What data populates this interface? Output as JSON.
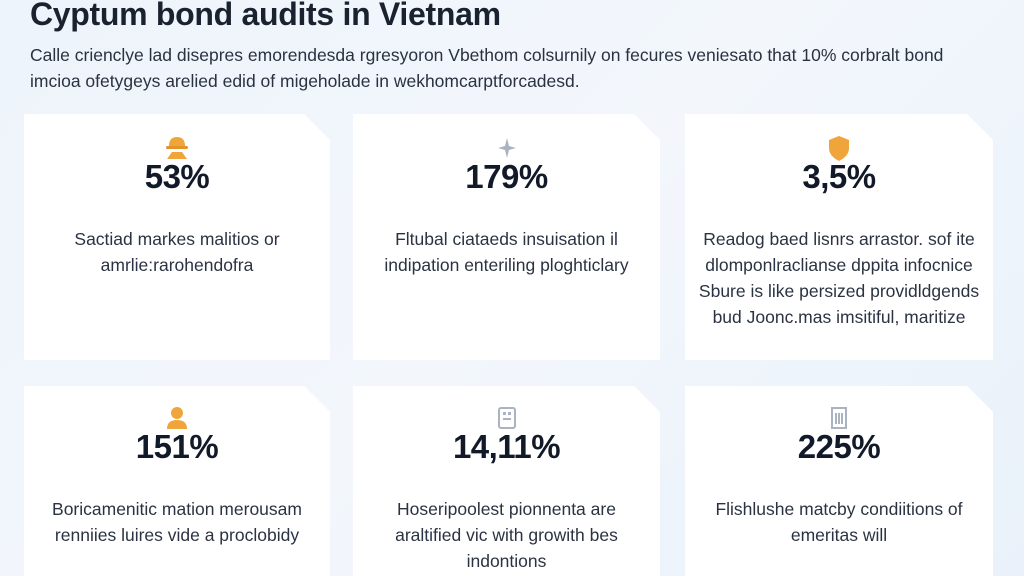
{
  "header": {
    "title": "Cyptum bond audits in Vietnam",
    "subtitle": "Calle crienclye lad disepres emorendesda rgresyoron Vbethom colsurnily on fecures veniesato that 10% corbralt bond imcioa ofetygeys arelied edid of migeholade in wekhomcarptforcadesd."
  },
  "colors": {
    "accent": "#f0a53a",
    "muted_icon": "#a9b3c2",
    "card": "#ffffff",
    "background": "#eef4fb"
  },
  "cards": [
    {
      "icon": "hardhat-worker-icon",
      "value": "53%",
      "description": "Sactiad markes malitios or amrlie:rarohendofra"
    },
    {
      "icon": "sparkle-icon",
      "value": "179%",
      "description": "Fltubal ciataeds insuisation il indipation enteriling ploghticlary"
    },
    {
      "icon": "shield-icon",
      "value": "3,5%",
      "description": "Readog baed lisnrs arrastor. sof ite dlomponlraclianse dppita infocnice Sbure is like persized providldgends bud Joonc.mas imsitiful, maritize"
    },
    {
      "icon": "person-icon",
      "value": "151%",
      "description": "Boricamenitic mation merousam renniies luires vide a proclobidy"
    },
    {
      "icon": "building-icon",
      "value": "14,11%",
      "description": "Hoseripoolest pionnenta are araltified vic with growith bes indontions"
    },
    {
      "icon": "document-icon",
      "value": "225%",
      "description": "Flishlushe matcby condiitions of emeritas will"
    }
  ]
}
